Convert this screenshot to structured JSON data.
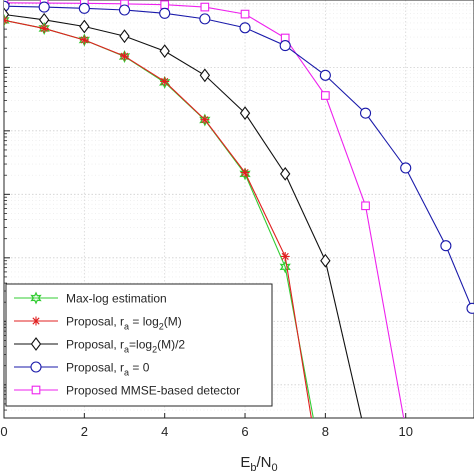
{
  "chart_data": {
    "type": "line",
    "xlabel": "E",
    "xlabel_sub": "b",
    "xlabel_slash": "/N",
    "xlabel_sub2": "0",
    "xlim": [
      0,
      11.7
    ],
    "x_ticks": [
      "0",
      "2",
      "4",
      "6",
      "8",
      "10"
    ],
    "y_scale": "log",
    "ylim": [
      3e-07,
      1.15
    ],
    "grid": true,
    "legend_position": "bottom-left",
    "series": [
      {
        "name": "Max-log estimation",
        "color": "#33cc33",
        "marker": "star6",
        "x": [
          0,
          1,
          2,
          3,
          4,
          5,
          6,
          7,
          7.7
        ],
        "y": [
          0.55,
          0.41,
          0.27,
          0.148,
          0.058,
          0.0148,
          0.0021,
          7.2e-05,
          3e-07
        ]
      },
      {
        "name_parts": [
          "Proposal, r",
          "a",
          " = log",
          "2",
          "(M)"
        ],
        "color": "#e02020",
        "marker": "asterisk",
        "x": [
          0,
          1,
          2,
          3,
          4,
          5,
          6,
          7,
          7.65
        ],
        "y": [
          0.55,
          0.41,
          0.27,
          0.15,
          0.06,
          0.015,
          0.0022,
          0.000105,
          3e-07
        ]
      },
      {
        "name_parts": [
          "Proposal, r",
          "a",
          "=log",
          "2",
          "(M)/2"
        ],
        "color": "#111111",
        "marker": "diamond",
        "x": [
          0,
          1,
          2,
          3,
          4,
          5,
          6,
          7,
          8,
          8.9
        ],
        "y": [
          0.68,
          0.56,
          0.44,
          0.31,
          0.18,
          0.075,
          0.019,
          0.0021,
          9e-05,
          3e-07
        ]
      },
      {
        "name_parts": [
          "Proposal, r",
          "a",
          " = 0"
        ],
        "color": "#1a1aaa",
        "marker": "circle",
        "x": [
          0,
          1,
          2,
          3,
          4,
          5,
          6,
          7,
          8,
          9,
          10,
          11,
          11.65
        ],
        "y": [
          0.92,
          0.89,
          0.85,
          0.8,
          0.71,
          0.58,
          0.42,
          0.22,
          0.075,
          0.019,
          0.0026,
          0.000155,
          1.6e-05
        ]
      },
      {
        "name": "Proposed MMSE-based detector",
        "color": "#ee22ee",
        "marker": "square",
        "x": [
          0,
          1,
          2,
          3,
          4,
          5,
          6,
          7,
          8,
          9,
          9.95
        ],
        "y": [
          1.04,
          1.03,
          1.02,
          1.0,
          0.97,
          0.89,
          0.69,
          0.29,
          0.036,
          0.00066,
          3e-07
        ]
      }
    ]
  }
}
